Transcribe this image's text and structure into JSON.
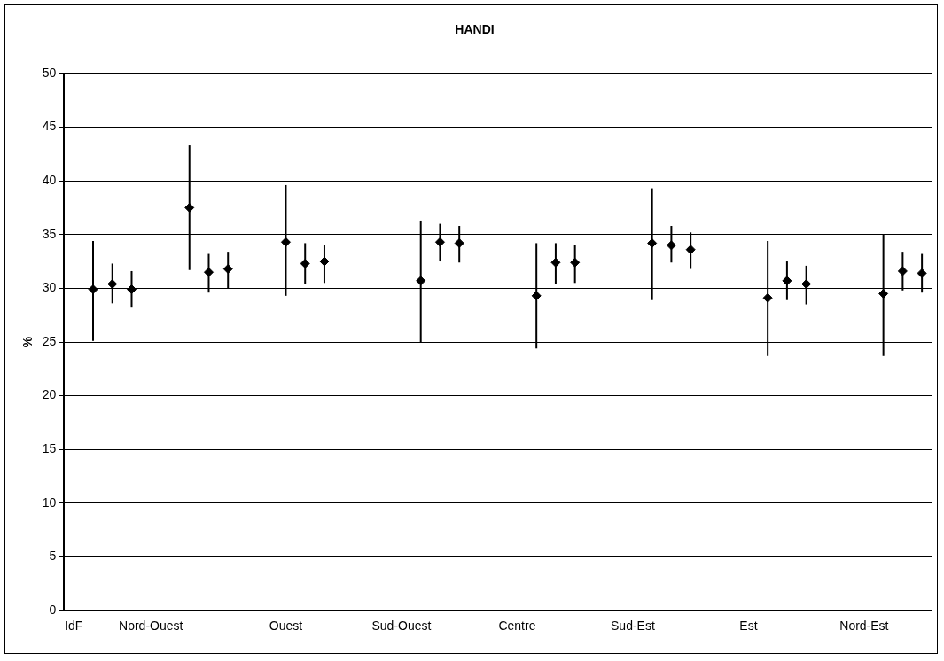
{
  "chart_data": {
    "type": "scatter",
    "title": "HANDI",
    "ylabel": "%",
    "categories": [
      "IdF",
      null,
      null,
      null,
      "Nord-Ouest",
      null,
      null,
      null,
      null,
      null,
      null,
      "Ouest",
      null,
      null,
      null,
      null,
      null,
      "Sud-Ouest",
      null,
      null,
      null,
      null,
      null,
      "Centre",
      null,
      null,
      null,
      null,
      null,
      "Sud-Est",
      null,
      null,
      null,
      null,
      null,
      "Est",
      null,
      null,
      null,
      null,
      null,
      "Nord-Est",
      null,
      null,
      null
    ],
    "values": [
      null,
      29.9,
      30.4,
      29.9,
      null,
      null,
      37.5,
      31.5,
      31.8,
      null,
      null,
      34.3,
      32.3,
      32.5,
      null,
      null,
      null,
      null,
      30.7,
      34.3,
      34.2,
      null,
      null,
      null,
      29.3,
      32.4,
      32.4,
      null,
      null,
      null,
      34.2,
      34.0,
      33.6,
      null,
      null,
      null,
      29.1,
      30.7,
      30.4,
      null,
      null,
      null,
      29.5,
      31.6,
      31.4
    ],
    "errors": [
      null,
      [
        25.1,
        34.4
      ],
      [
        28.6,
        32.3
      ],
      [
        28.2,
        31.6
      ],
      null,
      null,
      [
        31.7,
        43.3
      ],
      [
        29.6,
        33.2
      ],
      [
        30.0,
        33.4
      ],
      null,
      null,
      [
        29.3,
        39.6
      ],
      [
        30.4,
        34.2
      ],
      [
        30.5,
        34.0
      ],
      null,
      null,
      null,
      null,
      [
        25.0,
        36.3
      ],
      [
        32.5,
        36.0
      ],
      [
        32.4,
        35.8
      ],
      null,
      null,
      null,
      [
        24.4,
        34.2
      ],
      [
        30.4,
        34.2
      ],
      [
        30.5,
        34.0
      ],
      null,
      null,
      null,
      [
        28.9,
        39.3
      ],
      [
        32.4,
        35.8
      ],
      [
        31.8,
        35.2
      ],
      null,
      null,
      null,
      [
        23.7,
        34.4
      ],
      [
        28.9,
        32.5
      ],
      [
        28.5,
        32.1
      ],
      null,
      null,
      null,
      [
        23.7,
        35.0
      ],
      [
        29.8,
        33.4
      ],
      [
        29.6,
        33.2
      ]
    ],
    "color": "#000000",
    "ylim": [
      0,
      50
    ],
    "yticks": [
      0,
      5,
      10,
      15,
      20,
      25,
      30,
      35,
      40,
      45,
      50
    ],
    "grid": "y",
    "legend": false,
    "marker": "diamond"
  }
}
